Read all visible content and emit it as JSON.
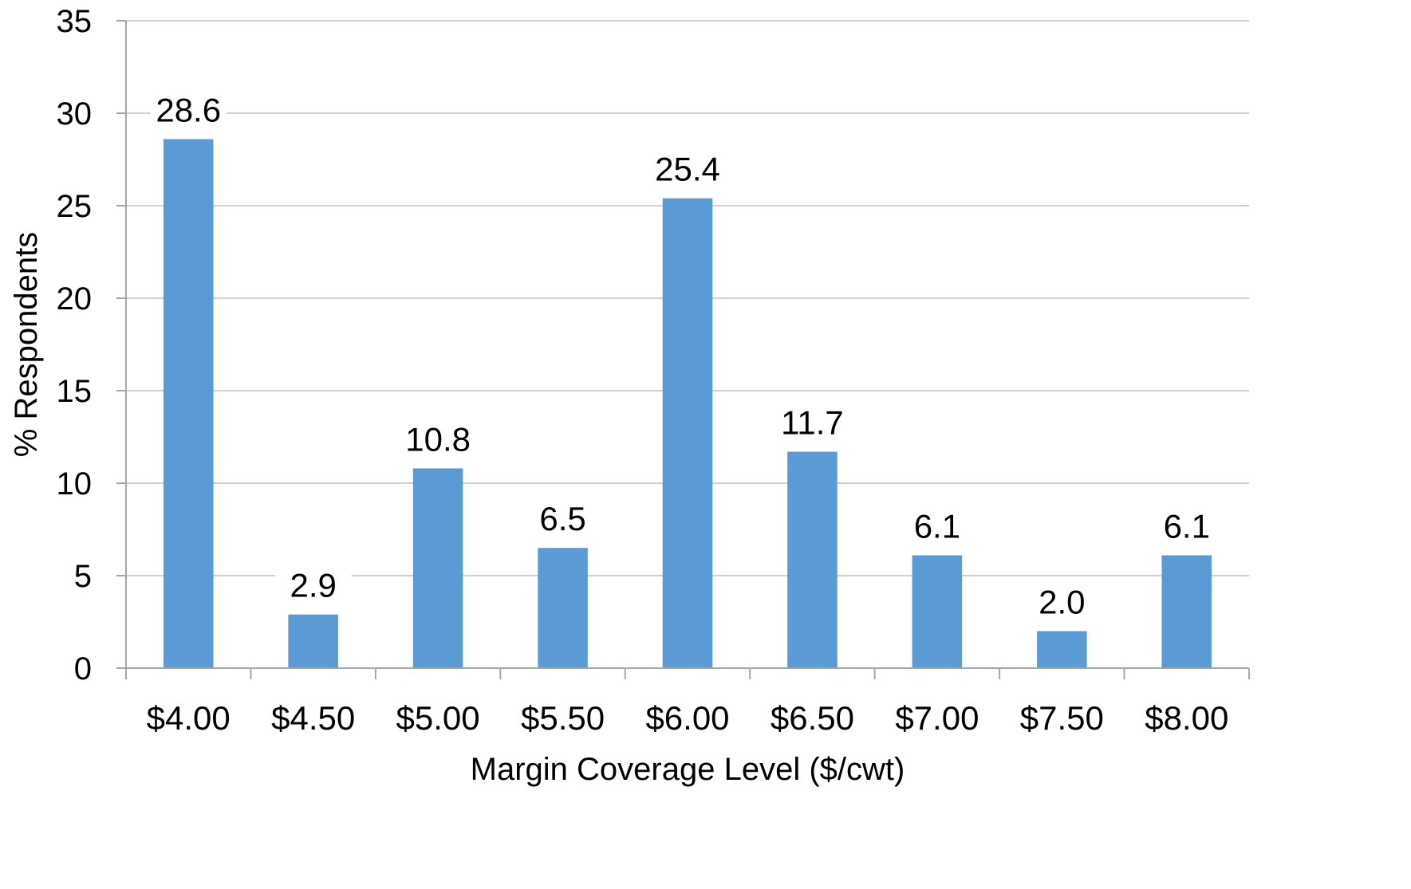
{
  "chart_data": {
    "type": "bar",
    "title": "",
    "xlabel": "Margin Coverage Level ($/cwt)",
    "ylabel": "% Respondents",
    "categories": [
      "$4.00",
      "$4.50",
      "$5.00",
      "$5.50",
      "$6.00",
      "$6.50",
      "$7.00",
      "$7.50",
      "$8.00"
    ],
    "values": [
      28.6,
      2.9,
      10.8,
      6.5,
      25.4,
      11.7,
      6.1,
      2.0,
      6.1
    ],
    "data_labels": [
      "28.6",
      "2.9",
      "10.8",
      "6.5",
      "25.4",
      "11.7",
      "6.1",
      "2.0",
      "6.1"
    ],
    "ylim": [
      0,
      35
    ],
    "yticks": [
      0,
      5,
      10,
      15,
      20,
      25,
      30,
      35
    ],
    "grid": true,
    "legend": "none",
    "bar_color": "#5b9bd5"
  }
}
